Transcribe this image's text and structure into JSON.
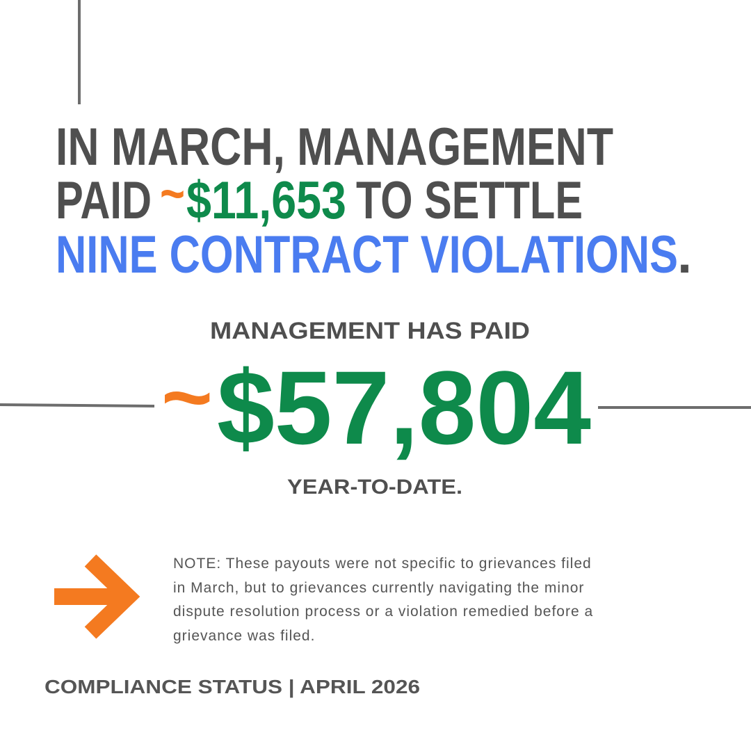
{
  "headline": {
    "line1": "IN MARCH, MANAGEMENT",
    "line2_start": "PAID",
    "tilde": "~",
    "amount": "$11,653",
    "line2_end": "TO SETTLE",
    "highlight": "NINE CONTRACT VIOLATIONS",
    "period": "."
  },
  "total": {
    "label": "MANAGEMENT HAS PAID",
    "tilde": "~",
    "amount": "$57,804",
    "suffix": "YEAR-TO-DATE."
  },
  "note": {
    "lines": [
      "NOTE: These payouts were not specific to grievances filed",
      "in March, but to grievances currently navigating the minor",
      "dispute resolution process or a violation remedied before a",
      "grievance was filed."
    ]
  },
  "footer": "COMPLIANCE STATUS | APRIL 2026"
}
